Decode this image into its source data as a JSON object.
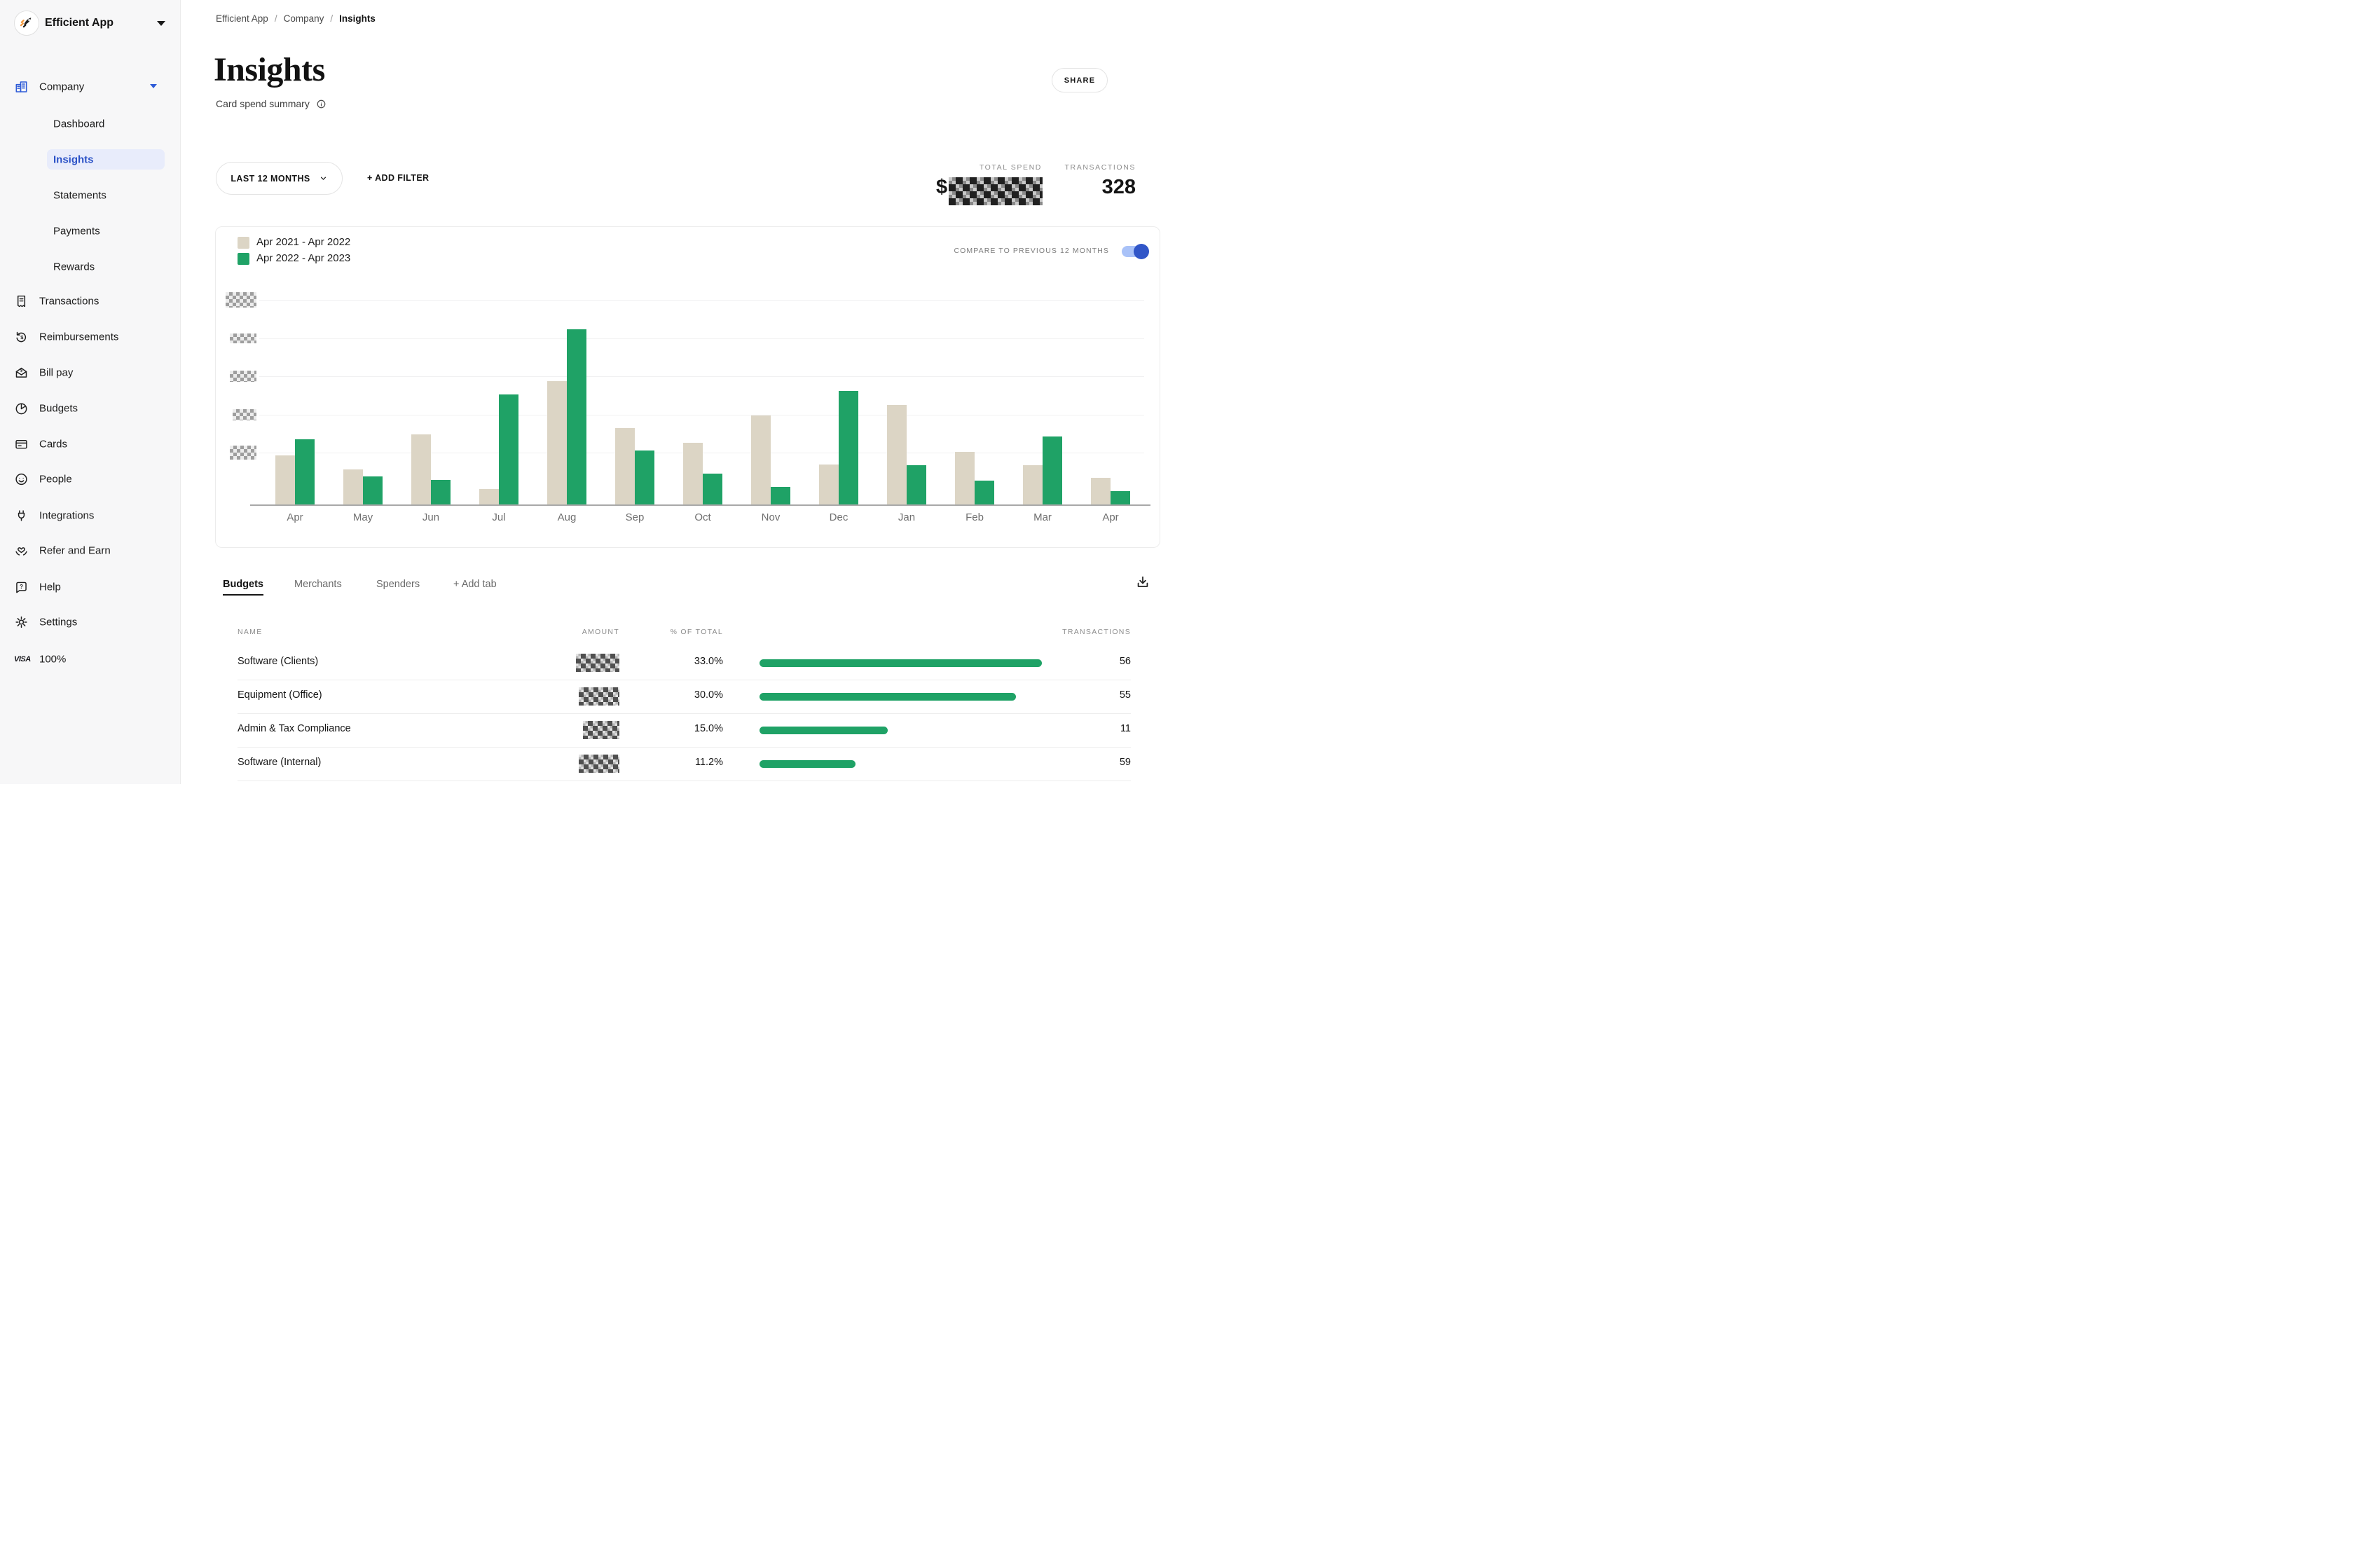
{
  "colors": {
    "accent_blue": "#2e5bd7",
    "active_item_bg": "#e8ecfb",
    "active_item_text": "#2b52c7",
    "series_prev": "#dcd5c5",
    "series_curr": "#1fa266",
    "toggle_track": "#a9c2f8",
    "toggle_knob": "#3156c8",
    "logo_orange": "#f59a3e"
  },
  "sidebar": {
    "logo": {
      "label": "Efficient App",
      "icon": "rocket-logo"
    },
    "company": {
      "label": "Company",
      "icon": "buildings-icon",
      "items": [
        {
          "label": "Dashboard",
          "active": false
        },
        {
          "label": "Insights",
          "active": true
        },
        {
          "label": "Statements",
          "active": false
        },
        {
          "label": "Payments",
          "active": false
        },
        {
          "label": "Rewards",
          "active": false
        }
      ]
    },
    "items": [
      {
        "label": "Transactions",
        "icon": "receipt-icon"
      },
      {
        "label": "Reimbursements",
        "icon": "refund-icon"
      },
      {
        "label": "Bill pay",
        "icon": "bill-envelope-icon"
      },
      {
        "label": "Budgets",
        "icon": "pie-icon"
      },
      {
        "label": "Cards",
        "icon": "card-icon"
      },
      {
        "label": "People",
        "icon": "smiley-icon"
      },
      {
        "label": "Integrations",
        "icon": "plug-icon"
      },
      {
        "label": "Refer and Earn",
        "icon": "hands-heart-icon"
      },
      {
        "label": "Help",
        "icon": "help-bubble-icon"
      },
      {
        "label": "Settings",
        "icon": "gear-icon"
      }
    ],
    "footer": {
      "brand": "VISA",
      "value": "100%"
    }
  },
  "breadcrumb": {
    "items": [
      "Efficient App",
      "Company",
      "Insights"
    ],
    "separator": "/"
  },
  "page": {
    "title": "Insights",
    "subtitle": "Card spend summary",
    "share_label": "SHARE"
  },
  "filters": {
    "period": "LAST 12 MONTHS",
    "add_filter": "+ ADD FILTER"
  },
  "summary": {
    "total_spend_label": "TOTAL SPEND",
    "currency_prefix": "$",
    "total_spend_redacted": true,
    "transactions_label": "TRANSACTIONS",
    "transactions_value": "328"
  },
  "chart_data": {
    "type": "bar",
    "categories": [
      "Apr",
      "May",
      "Jun",
      "Jul",
      "Aug",
      "Sep",
      "Oct",
      "Nov",
      "Dec",
      "Jan",
      "Feb",
      "Mar",
      "Apr"
    ],
    "series": [
      {
        "name": "Apr 2021 - Apr 2022",
        "color": "#dcd5c5",
        "values_gridline_units": [
          1.28,
          0.91,
          1.83,
          0.4,
          3.21,
          1.99,
          1.61,
          2.32,
          1.04,
          2.59,
          1.37,
          1.02,
          0.69
        ]
      },
      {
        "name": "Apr 2022 - Apr 2023",
        "color": "#1fa266",
        "values_gridline_units": [
          1.7,
          0.73,
          0.64,
          2.87,
          4.57,
          1.41,
          0.8,
          0.46,
          2.96,
          1.02,
          0.62,
          1.77,
          0.35
        ]
      }
    ],
    "y_axis": {
      "gridline_count": 5,
      "tick_labels": "redacted-pixelated-in-source",
      "unit_note": "values expressed in gridline intervals; numeric axis labels are blurred in the screenshot"
    },
    "x_axis_label": "",
    "title": "",
    "grid": true,
    "legend_position": "top-left",
    "compare_toggle": {
      "label": "COMPARE TO PREVIOUS 12 MONTHS",
      "state": "on"
    }
  },
  "tabs": {
    "items": [
      "Budgets",
      "Merchants",
      "Spenders"
    ],
    "active": "Budgets",
    "add_tab": "+ Add tab"
  },
  "table": {
    "columns": [
      "NAME",
      "AMOUNT",
      "% OF TOTAL",
      "TRANSACTIONS"
    ],
    "rows": [
      {
        "name": "Software (Clients)",
        "amount_redacted": true,
        "pct_label": "33.0%",
        "pct": 33.0,
        "transactions": "56"
      },
      {
        "name": "Equipment (Office)",
        "amount_redacted": true,
        "pct_label": "30.0%",
        "pct": 30.0,
        "transactions": "55"
      },
      {
        "name": "Admin & Tax Compliance",
        "amount_redacted": true,
        "pct_label": "15.0%",
        "pct": 15.0,
        "transactions": "11"
      },
      {
        "name": "Software (Internal)",
        "amount_redacted": true,
        "pct_label": "11.2%",
        "pct": 11.2,
        "transactions": "59"
      }
    ]
  }
}
